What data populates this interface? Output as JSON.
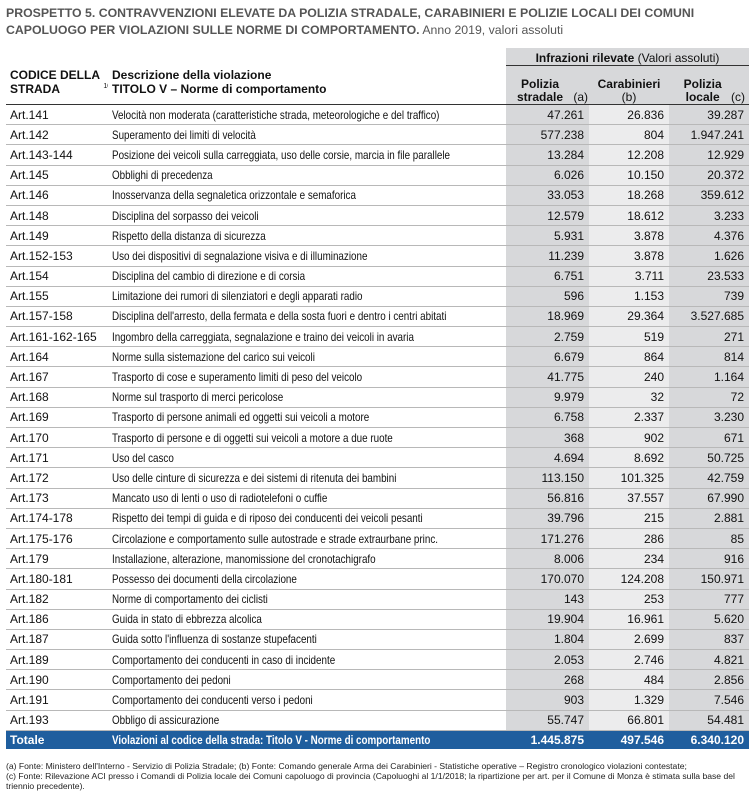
{
  "header": {
    "title_bold": "PROSPETTO 5. CONTRAVVENZIONI ELEVATE DA POLIZIA STRADALE, CARABINIERI E POLIZIE LOCALI DEI COMUNI CAPOLUOGO PER VIOLAZIONI SULLE NORME DI COMPORTAMENTO.",
    "title_rest": "Anno 2019, valori assoluti"
  },
  "table": {
    "columns": {
      "code": "CODICE DELLA STRADA",
      "code_note": "10",
      "desc": "Descrizione della violazione",
      "desc_sub": "TITOLO V – Norme di comportamento",
      "group": "Infrazioni rilevate",
      "group_note": "(Valori assoluti)",
      "a": "Polizia stradale",
      "a_note": "(a)",
      "b": "Carabinieri",
      "b_note": "(b)",
      "c": "Polizia locale",
      "c_note": "(c)"
    },
    "rows": [
      [
        "Art.141",
        "Velocità non moderata (caratteristiche strada, meteorologiche e del traffico)",
        "47.261",
        "26.836",
        "39.287"
      ],
      [
        "Art.142",
        "Superamento dei limiti di velocità",
        "577.238",
        "804",
        "1.947.241"
      ],
      [
        "Art.143-144",
        "Posizione dei veicoli sulla carreggiata, uso delle corsie, marcia in file parallele",
        "13.284",
        "12.208",
        "12.929"
      ],
      [
        "Art.145",
        "Obblighi di precedenza",
        "6.026",
        "10.150",
        "20.372"
      ],
      [
        "Art.146",
        "Inosservanza della segnaletica orizzontale e semaforica",
        "33.053",
        "18.268",
        "359.612"
      ],
      [
        "Art.148",
        "Disciplina del sorpasso dei veicoli",
        "12.579",
        "18.612",
        "3.233"
      ],
      [
        "Art.149",
        "Rispetto della distanza di sicurezza",
        "5.931",
        "3.878",
        "4.376"
      ],
      [
        "Art.152-153",
        "Uso dei dispositivi di segnalazione visiva e di illuminazione",
        "11.239",
        "3.878",
        "1.626"
      ],
      [
        "Art.154",
        "Disciplina del cambio di direzione e di corsia",
        "6.751",
        "3.711",
        "23.533"
      ],
      [
        "Art.155",
        "Limitazione dei rumori di silenziatori e degli apparati radio",
        "596",
        "1.153",
        "739"
      ],
      [
        "Art.157-158",
        "Disciplina dell'arresto, della fermata e della sosta fuori e dentro i centri abitati",
        "18.969",
        "29.364",
        "3.527.685"
      ],
      [
        "Art.161-162-165",
        "Ingombro della carreggiata, segnalazione e traino dei veicoli in avaria",
        "2.759",
        "519",
        "271"
      ],
      [
        "Art.164",
        "Norme sulla sistemazione del carico sui veicoli",
        "6.679",
        "864",
        "814"
      ],
      [
        "Art.167",
        "Trasporto di cose e superamento limiti di peso del veicolo",
        "41.775",
        "240",
        "1.164"
      ],
      [
        "Art.168",
        "Norme sul trasporto di merci pericolose",
        "9.979",
        "32",
        "72"
      ],
      [
        "Art.169",
        "Trasporto di persone animali ed oggetti sui veicoli a motore",
        "6.758",
        "2.337",
        "3.230"
      ],
      [
        "Art.170",
        "Trasporto di persone e di oggetti sui veicoli a motore a due ruote",
        "368",
        "902",
        "671"
      ],
      [
        "Art.171",
        "Uso del casco",
        "4.694",
        "8.692",
        "50.725"
      ],
      [
        "Art.172",
        "Uso delle cinture di sicurezza e dei sistemi di ritenuta dei bambini",
        "113.150",
        "101.325",
        "42.759"
      ],
      [
        "Art.173",
        "Mancato uso di lenti o uso di radiotelefoni o cuffie",
        "56.816",
        "37.557",
        "67.990"
      ],
      [
        "Art.174-178",
        "Rispetto dei tempi di guida e di riposo dei conducenti dei veicoli pesanti",
        "39.796",
        "215",
        "2.881"
      ],
      [
        "Art.175-176",
        "Circolazione e comportamento sulle autostrade e strade extraurbane princ.",
        "171.276",
        "286",
        "85"
      ],
      [
        "Art.179",
        "Installazione, alterazione, manomissione del cronotachigrafo",
        "8.006",
        "234",
        "916"
      ],
      [
        "Art.180-181",
        "Possesso dei documenti della circolazione",
        "170.070",
        "124.208",
        "150.971"
      ],
      [
        "Art.182",
        "Norme di comportamento dei ciclisti",
        "143",
        "253",
        "777"
      ],
      [
        "Art.186",
        "Guida in stato di ebbrezza alcolica",
        "19.904",
        "16.961",
        "5.620"
      ],
      [
        "Art.187",
        "Guida sotto l'influenza di sostanze stupefacenti",
        "1.804",
        "2.699",
        "837"
      ],
      [
        "Art.189",
        "Comportamento dei conducenti in caso di incidente",
        "2.053",
        "2.746",
        "4.821"
      ],
      [
        "Art.190",
        "Comportamento dei pedoni",
        "268",
        "484",
        "2.856"
      ],
      [
        "Art.191",
        "Comportamento dei conducenti verso i pedoni",
        "903",
        "1.329",
        "7.546"
      ],
      [
        "Art.193",
        "Obbligo di assicurazione",
        "55.747",
        "66.801",
        "54.481"
      ]
    ],
    "total": [
      "Totale",
      "Violazioni al codice della strada: Titolo V - Norme di comportamento",
      "1.445.875",
      "497.546",
      "6.340.120"
    ]
  },
  "footnotes": [
    "(a)  Fonte: Ministero dell'Interno - Servizio di Polizia Stradale; (b) Fonte: Comando generale Arma dei Carabinieri - Statistiche operative – Registro cronologico violazioni contestate;",
    "(c)  Fonte: Rilevazione ACI presso i Comandi di Polizia locale dei Comuni capoluogo di provincia (Capoluoghi al 1/1/2018; la ripartizione per art. per il Comune di Monza è stimata sulla base del triennio precedente)."
  ]
}
